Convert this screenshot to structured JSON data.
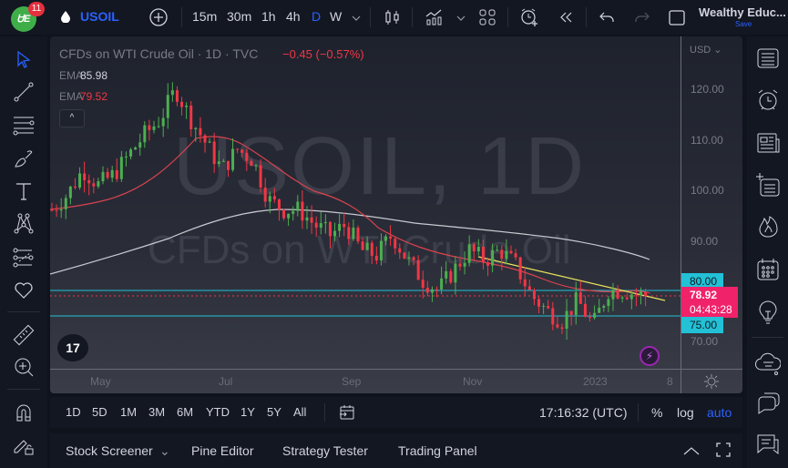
{
  "topbar": {
    "notification_count": "11",
    "logo_text": "ᏌE",
    "symbol": "USOIL",
    "intervals": [
      "15m",
      "30m",
      "1h",
      "4h",
      "D",
      "W"
    ],
    "active_interval": "D",
    "user_name": "Wealthy Educ...",
    "save_label": "Save"
  },
  "legend": {
    "title": "CFDs on WTI Crude Oil · 1D · TVC",
    "change": "−0.45 (−0.57%)",
    "ema1_label": "EMA",
    "ema1_value": "85.98",
    "ema2_label": "EMA",
    "ema2_value": "79.52",
    "collapse_glyph": "^"
  },
  "watermark": {
    "line1": "USOIL, 1D",
    "line2": "CFDs on WTI Crude Oil"
  },
  "price_axis": {
    "currency": "USD ⌄",
    "labels": [
      "120.00",
      "110.00",
      "100.00",
      "90.00",
      "70.00"
    ],
    "level_80": "80.00",
    "level_75": "75.00",
    "last_price": "78.92",
    "countdown": "04:43:28"
  },
  "time_axis": {
    "labels": [
      "May",
      "Jul",
      "Sep",
      "Nov",
      "2023",
      "8"
    ]
  },
  "tv_logo": "17",
  "range_bar": {
    "ranges": [
      "1D",
      "5D",
      "1M",
      "3M",
      "6M",
      "YTD",
      "1Y",
      "5Y",
      "All"
    ],
    "clock": "17:16:32 (UTC)",
    "percent": "%",
    "log": "log",
    "auto": "auto"
  },
  "bottom_bar": {
    "tabs": [
      "Stock Screener",
      "Pine Editor",
      "Strategy Tester",
      "Trading Panel"
    ],
    "dropdown_glyph": "⌄"
  },
  "colors": {
    "up": "#4caf50",
    "down": "#f23645",
    "ema_red": "#d9434f",
    "ema_white": "#c8cad0",
    "level_cyan": "#22c1d6",
    "trendline": "#e8e35a",
    "accent": "#2962ff",
    "price_tag": "#f0226a"
  },
  "chart_data": {
    "type": "candlestick",
    "title": "CFDs on WTI Crude Oil · 1D · TVC",
    "x_ticks": [
      "May",
      "Jul",
      "Sep",
      "Nov",
      "2023",
      "8"
    ],
    "y_ticks": [
      120,
      110,
      100,
      90,
      80,
      75,
      70
    ],
    "ylim": [
      64,
      127
    ],
    "close_approx": [
      [
        0,
        96
      ],
      [
        10,
        99
      ],
      [
        20,
        104
      ],
      [
        30,
        101
      ],
      [
        40,
        103
      ],
      [
        50,
        107
      ],
      [
        60,
        111
      ],
      [
        70,
        114
      ],
      [
        80,
        120
      ],
      [
        90,
        114
      ],
      [
        100,
        109
      ],
      [
        110,
        104
      ],
      [
        120,
        108
      ],
      [
        130,
        106
      ],
      [
        140,
        98
      ],
      [
        150,
        96
      ],
      [
        160,
        96
      ],
      [
        170,
        93
      ],
      [
        180,
        91
      ],
      [
        190,
        93
      ],
      [
        200,
        88
      ],
      [
        210,
        87
      ],
      [
        220,
        91
      ],
      [
        230,
        86
      ],
      [
        240,
        82
      ],
      [
        250,
        80
      ],
      [
        260,
        84
      ],
      [
        270,
        88
      ],
      [
        280,
        86
      ],
      [
        290,
        88
      ],
      [
        300,
        85
      ],
      [
        310,
        79
      ],
      [
        320,
        76
      ],
      [
        330,
        74
      ],
      [
        340,
        78
      ],
      [
        350,
        73
      ],
      [
        360,
        80
      ],
      [
        370,
        80
      ],
      [
        380,
        79
      ],
      [
        386,
        78.92
      ]
    ],
    "ema_red_last": 79.52,
    "ema_white_last": 85.98,
    "horizontal_levels": [
      80.0,
      75.0
    ],
    "last_price": 78.92,
    "change": -0.45,
    "change_pct": -0.57
  }
}
